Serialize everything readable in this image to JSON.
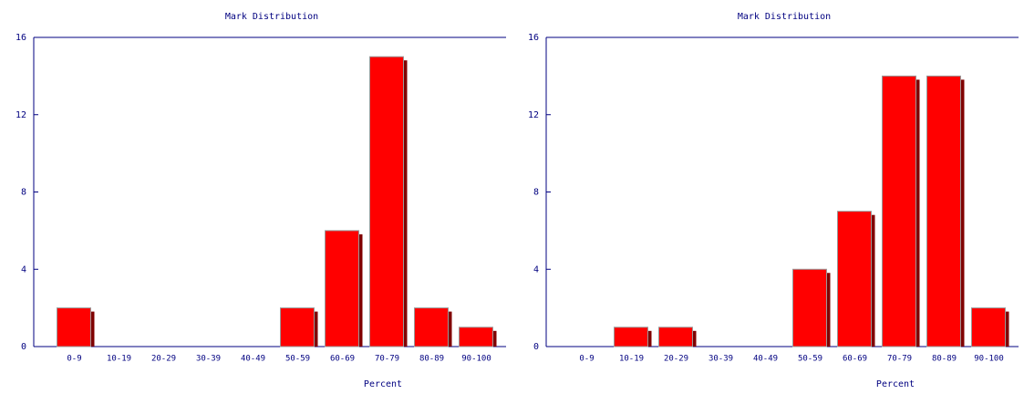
{
  "chart_data": [
    {
      "type": "bar",
      "title": "Mark Distribution",
      "x_label": "Percent",
      "categories": [
        "0-9",
        "10-19",
        "20-29",
        "30-39",
        "40-49",
        "50-59",
        "60-69",
        "70-79",
        "80-89",
        "90-100"
      ],
      "values": [
        2,
        0,
        0,
        0,
        0,
        2,
        6,
        15,
        2,
        1
      ],
      "color": "#ff0000",
      "ylim": [
        0,
        16
      ],
      "yticks": [
        0,
        4,
        8,
        12,
        16
      ]
    },
    {
      "type": "bar",
      "title": "Mark Distribution",
      "x_label": "Percent",
      "categories": [
        "0-9",
        "10-19",
        "20-29",
        "30-39",
        "40-49",
        "50-59",
        "60-69",
        "70-79",
        "80-89",
        "90-100"
      ],
      "values": [
        0,
        1,
        1,
        0,
        0,
        4,
        7,
        14,
        14,
        2
      ],
      "color": "#ff0000",
      "ylim": [
        0,
        16
      ],
      "yticks": [
        0,
        4,
        8,
        12,
        16
      ]
    }
  ]
}
